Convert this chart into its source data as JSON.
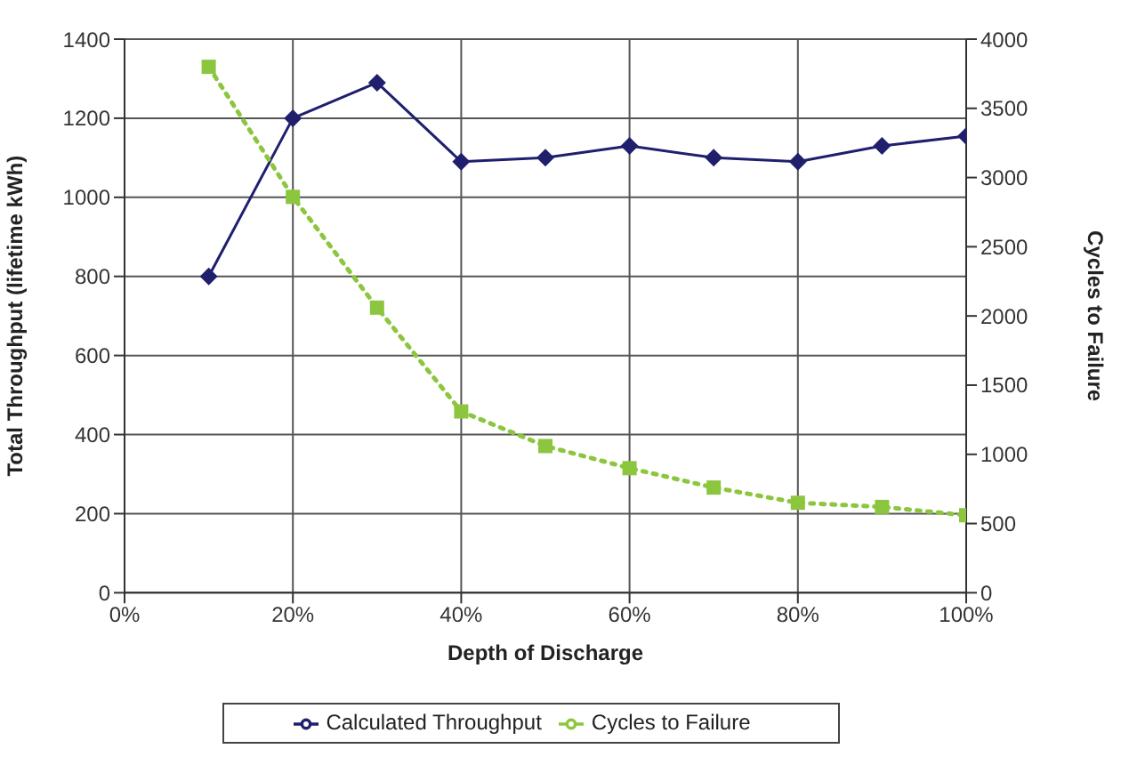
{
  "chart_data": {
    "type": "line",
    "xlabel": "Depth of Discharge",
    "ylabel": "Total Throughput (lifetime kWh)",
    "y2label": "Cycles to Failure",
    "x": [
      10,
      20,
      30,
      40,
      50,
      60,
      70,
      80,
      90,
      100
    ],
    "series": [
      {
        "name": "Calculated Throughput",
        "color": "#1f1f6e",
        "marker": "diamond",
        "line_style": "solid",
        "values": [
          800,
          1200,
          1290,
          1090,
          1100,
          1130,
          1100,
          1090,
          1130,
          1155
        ]
      },
      {
        "name": "Cycles to Failure",
        "color": "#8cc63f",
        "marker": "square",
        "line_style": "dotted",
        "axis": "y2",
        "values": [
          3800,
          2860,
          2060,
          1310,
          1060,
          900,
          760,
          650,
          620,
          560
        ]
      }
    ],
    "xlim": [
      0,
      100
    ],
    "xticks": [
      {
        "value": 0,
        "label": "0%"
      },
      {
        "value": 20,
        "label": "20%"
      },
      {
        "value": 40,
        "label": "40%"
      },
      {
        "value": 60,
        "label": "60%"
      },
      {
        "value": 80,
        "label": "80%"
      },
      {
        "value": 100,
        "label": "100%"
      }
    ],
    "ylim": [
      0,
      1400
    ],
    "yticks": [
      0,
      200,
      400,
      600,
      800,
      1000,
      1200,
      1400
    ],
    "y2lim": [
      0,
      4000
    ],
    "y2ticks": [
      0,
      500,
      1000,
      1500,
      2000,
      2500,
      3000,
      3500,
      4000
    ],
    "grid": true,
    "legend": "bottom"
  }
}
